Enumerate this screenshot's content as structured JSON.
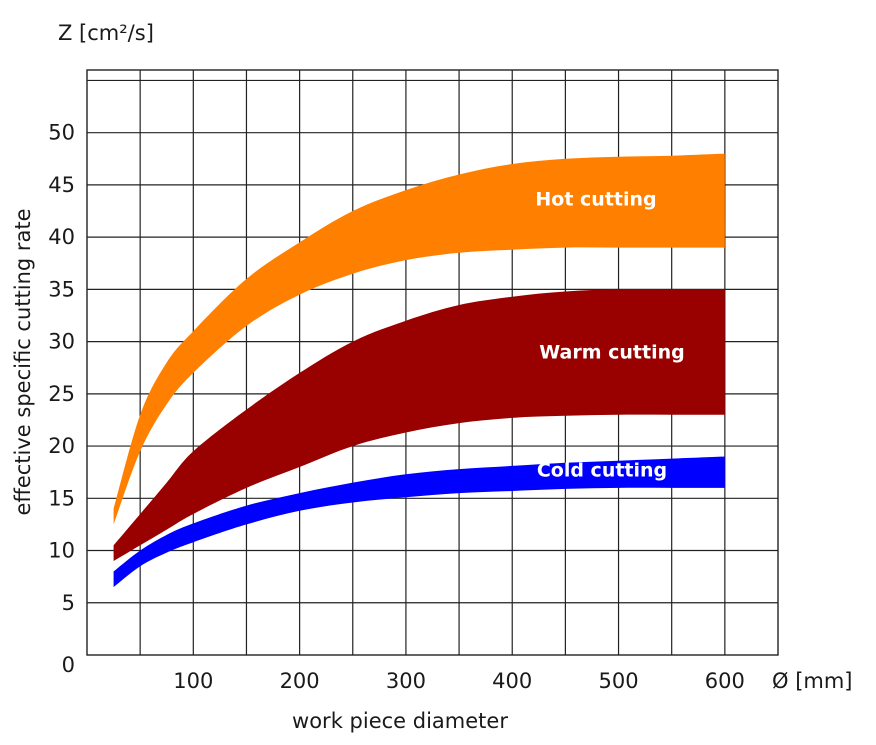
{
  "chart_data": {
    "type": "area",
    "ylabel_unit": "Z [cm²/s]",
    "ylabel": "effective specific cutting rate",
    "xlabel": "work piece diameter",
    "xlabel_unit": "Ø [mm]",
    "xlim": [
      0,
      650
    ],
    "ylim": [
      0,
      56
    ],
    "x_ticks": [
      100,
      200,
      300,
      400,
      500,
      600
    ],
    "y_ticks": [
      5,
      10,
      15,
      20,
      25,
      30,
      35,
      40,
      45,
      50
    ],
    "origin_label": "0",
    "grid": true,
    "x": [
      25,
      50,
      75,
      100,
      150,
      200,
      250,
      300,
      350,
      400,
      450,
      500,
      550,
      600
    ],
    "series": [
      {
        "name": "Hot cutting",
        "color": "#ff8000",
        "lower": [
          12.5,
          19.5,
          24,
          27,
          31.5,
          34.5,
          36.5,
          37.8,
          38.5,
          38.8,
          39,
          39,
          39,
          39
        ],
        "upper": [
          14,
          23,
          28,
          31,
          36,
          39.5,
          42.5,
          44.5,
          46,
          47,
          47.5,
          47.7,
          47.8,
          48
        ]
      },
      {
        "name": "Warm cutting",
        "color": "#990000",
        "lower": [
          9,
          10.5,
          12,
          13.5,
          16,
          18,
          20,
          21.3,
          22.2,
          22.7,
          22.9,
          23,
          23,
          23
        ],
        "upper": [
          10.5,
          13.5,
          16.5,
          19.5,
          23.5,
          27,
          30,
          32,
          33.5,
          34.3,
          34.8,
          35,
          35,
          35
        ]
      },
      {
        "name": "Cold cutting",
        "color": "#0000ff",
        "lower": [
          6.5,
          8.5,
          9.8,
          10.8,
          12.5,
          13.8,
          14.6,
          15.1,
          15.5,
          15.7,
          15.9,
          16,
          16,
          16
        ],
        "upper": [
          8,
          10,
          11.5,
          12.6,
          14.3,
          15.5,
          16.5,
          17.3,
          17.8,
          18.1,
          18.4,
          18.6,
          18.8,
          19
        ]
      }
    ]
  }
}
